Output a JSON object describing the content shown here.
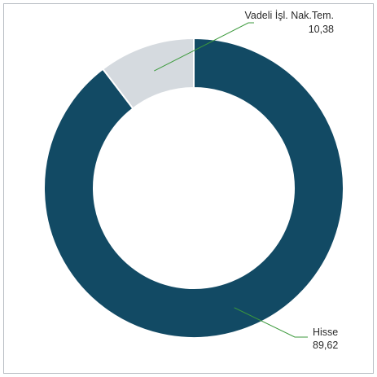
{
  "chart_data": {
    "type": "pie",
    "donut": true,
    "categories": [
      "Hisse",
      "Vadeli İşl. Nak.Tem."
    ],
    "values": [
      89.62,
      10.38
    ],
    "value_labels": [
      "89,62",
      "10,38"
    ],
    "colors": [
      "#124a64",
      "#d5dadf"
    ],
    "leader_line_color": "#3c9a3c",
    "title": "",
    "legend": "none"
  }
}
